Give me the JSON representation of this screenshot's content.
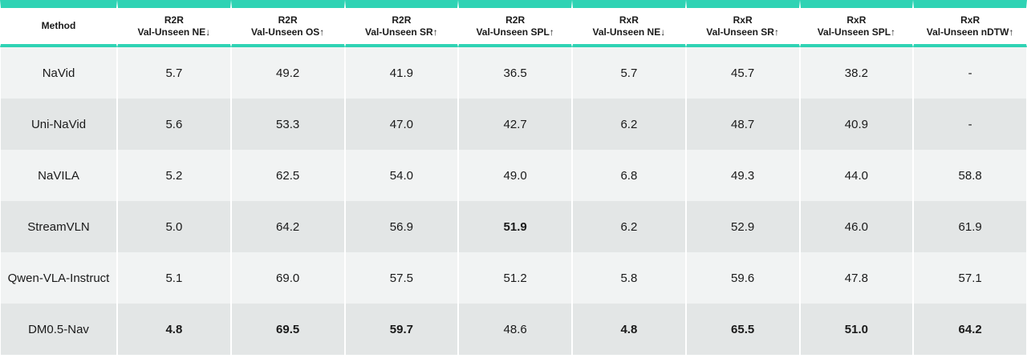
{
  "table": {
    "headers": [
      {
        "top": "Method",
        "bottom": ""
      },
      {
        "top": "R2R",
        "bottom": "Val-Unseen NE↓"
      },
      {
        "top": "R2R",
        "bottom": "Val-Unseen OS↑"
      },
      {
        "top": "R2R",
        "bottom": "Val-Unseen SR↑"
      },
      {
        "top": "R2R",
        "bottom": "Val-Unseen SPL↑"
      },
      {
        "top": "RxR",
        "bottom": "Val-Unseen NE↓"
      },
      {
        "top": "RxR",
        "bottom": "Val-Unseen SR↑"
      },
      {
        "top": "RxR",
        "bottom": "Val-Unseen SPL↑"
      },
      {
        "top": "RxR",
        "bottom": "Val-Unseen nDTW↑"
      }
    ],
    "rows": [
      {
        "method": "NaVid",
        "values": [
          "5.7",
          "49.2",
          "41.9",
          "36.5",
          "5.7",
          "45.7",
          "38.2",
          "-"
        ],
        "bold": []
      },
      {
        "method": "Uni-NaVid",
        "values": [
          "5.6",
          "53.3",
          "47.0",
          "42.7",
          "6.2",
          "48.7",
          "40.9",
          "-"
        ],
        "bold": []
      },
      {
        "method": "NaVILA",
        "values": [
          "5.2",
          "62.5",
          "54.0",
          "49.0",
          "6.8",
          "49.3",
          "44.0",
          "58.8"
        ],
        "bold": []
      },
      {
        "method": "StreamVLN",
        "values": [
          "5.0",
          "64.2",
          "56.9",
          "51.9",
          "6.2",
          "52.9",
          "46.0",
          "61.9"
        ],
        "bold": [
          3
        ]
      },
      {
        "method": "Qwen-VLA-Instruct",
        "values": [
          "5.1",
          "69.0",
          "57.5",
          "51.2",
          "5.8",
          "59.6",
          "47.8",
          "57.1"
        ],
        "bold": []
      },
      {
        "method": "DM0.5-Nav",
        "values": [
          "4.8",
          "69.5",
          "59.7",
          "48.6",
          "4.8",
          "65.5",
          "51.0",
          "64.2"
        ],
        "bold": [
          0,
          1,
          2,
          4,
          5,
          6,
          7
        ]
      }
    ]
  }
}
